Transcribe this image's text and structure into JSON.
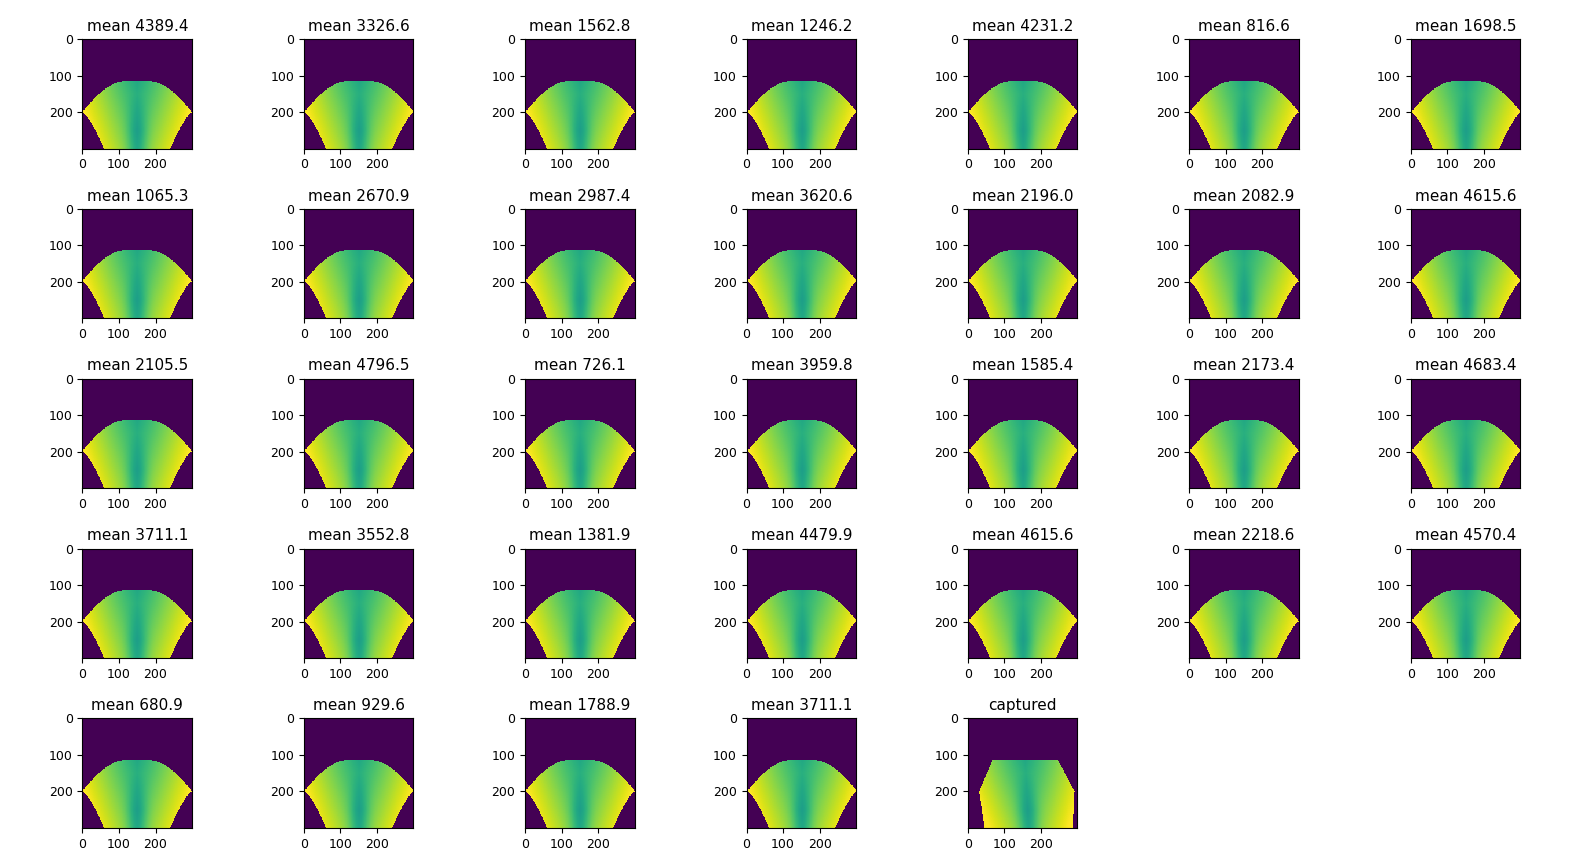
{
  "chart_data": {
    "type": "image_grid",
    "panels": [
      {
        "title": "mean 4389.4"
      },
      {
        "title": "mean 3326.6"
      },
      {
        "title": "mean 1562.8"
      },
      {
        "title": "mean 1246.2"
      },
      {
        "title": "mean 4231.2"
      },
      {
        "title": "mean 816.6"
      },
      {
        "title": "mean 1698.5"
      },
      {
        "title": "mean 1065.3"
      },
      {
        "title": "mean 2670.9"
      },
      {
        "title": "mean 2987.4"
      },
      {
        "title": "mean 3620.6"
      },
      {
        "title": "mean 2196.0"
      },
      {
        "title": "mean 2082.9"
      },
      {
        "title": "mean 4615.6"
      },
      {
        "title": "mean 2105.5"
      },
      {
        "title": "mean 4796.5"
      },
      {
        "title": "mean 726.1"
      },
      {
        "title": "mean 3959.8"
      },
      {
        "title": "mean 1585.4"
      },
      {
        "title": "mean 2173.4"
      },
      {
        "title": "mean 4683.4"
      },
      {
        "title": "mean 3711.1"
      },
      {
        "title": "mean 3552.8"
      },
      {
        "title": "mean 1381.9"
      },
      {
        "title": "mean 4479.9"
      },
      {
        "title": "mean 4615.6"
      },
      {
        "title": "mean 2218.6"
      },
      {
        "title": "mean 4570.4"
      },
      {
        "title": "mean 680.9"
      },
      {
        "title": "mean 929.6"
      },
      {
        "title": "mean 1788.9"
      },
      {
        "title": "mean 3711.1"
      },
      {
        "title": "captured"
      }
    ],
    "xlim": [
      0,
      300
    ],
    "ylim": [
      300,
      0
    ],
    "xticks": [
      0,
      100,
      200
    ],
    "yticks": [
      0,
      100,
      200
    ]
  }
}
